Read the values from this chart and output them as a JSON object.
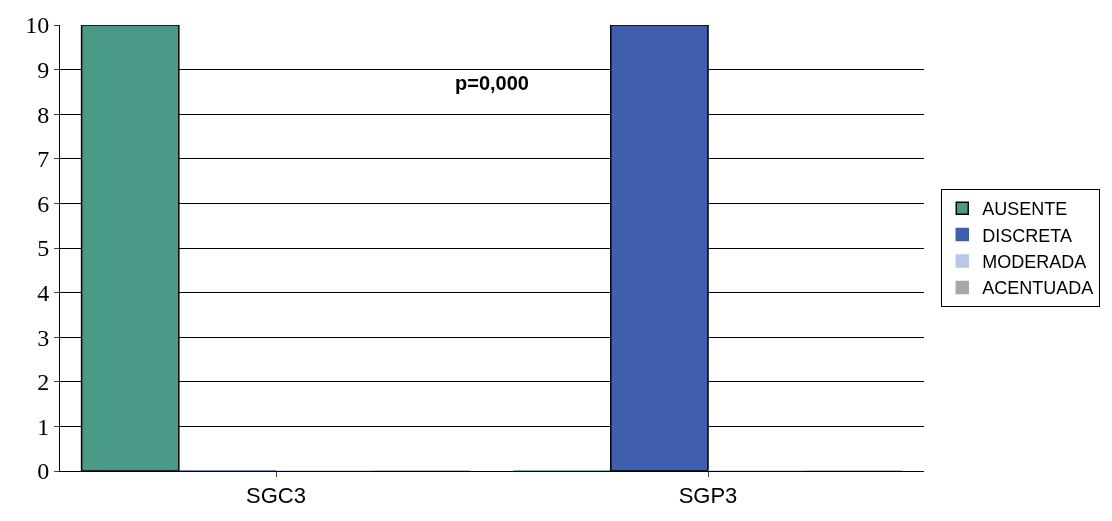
{
  "chart_data": {
    "type": "bar",
    "categories": [
      "SGC3",
      "SGP3"
    ],
    "series": [
      {
        "name": "AUSENTE",
        "color": "#4a9a88",
        "values": [
          10,
          0
        ]
      },
      {
        "name": "DISCRETA",
        "color": "#3f5fae",
        "values": [
          0,
          10
        ]
      },
      {
        "name": "MODERADA",
        "color": "#b8c8e8",
        "values": [
          0,
          0
        ]
      },
      {
        "name": "ACENTUADA",
        "color": "#a8a8a8",
        "values": [
          0,
          0
        ]
      }
    ],
    "ylim": [
      0,
      10
    ],
    "yticks": [
      0,
      1,
      2,
      3,
      4,
      5,
      6,
      7,
      8,
      9,
      10
    ],
    "grid": "y",
    "legend": "right",
    "annotations": [
      "p=0,000"
    ]
  }
}
